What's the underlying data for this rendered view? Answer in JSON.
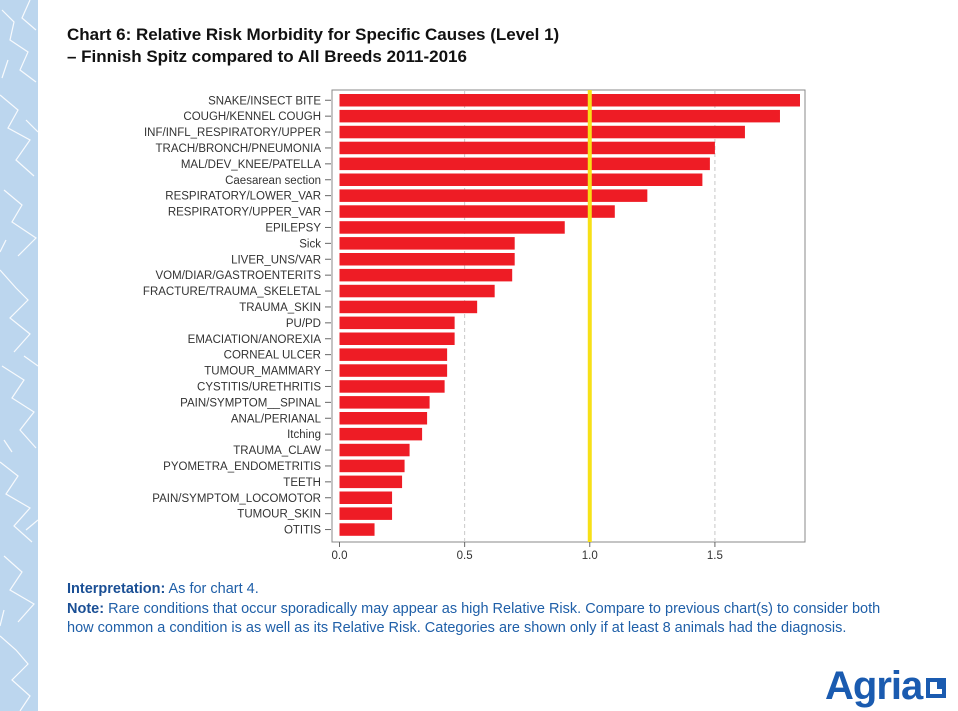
{
  "title_line1": "Chart 6: Relative Risk Morbidity for Specific Causes (Level 1)",
  "title_line2": "–  Finnish Spitz compared to All Breeds 2011-2016",
  "interpretation_label": "Interpretation:",
  "interpretation_text": "As for chart 4.",
  "note_label": "Note:",
  "note_text": "Rare conditions that occur sporadically may appear as high Relative Risk. Compare to previous chart(s) to consider both how common a condition is as well as its Relative Risk. Categories are shown only if at least 8 animals had the diagnosis.",
  "logo_text": "Agria",
  "colors": {
    "bar": "#ee1c25",
    "reference_line": "#f7e017",
    "notes_text": "#1f5fa8",
    "logo": "#1a5bb0",
    "side_band": "#bcd6ee"
  },
  "chart_data": {
    "type": "bar",
    "orientation": "horizontal",
    "categories": [
      "SNAKE/INSECT BITE",
      "COUGH/KENNEL COUGH",
      "INF/INFL_RESPIRATORY/UPPER",
      "TRACH/BRONCH/PNEUMONIA",
      "MAL/DEV_KNEE/PATELLA",
      "Caesarean section",
      "RESPIRATORY/LOWER_VAR",
      "RESPIRATORY/UPPER_VAR",
      "EPILEPSY",
      "Sick",
      "LIVER_UNS/VAR",
      "VOM/DIAR/GASTROENTERITS",
      "FRACTURE/TRAUMA_SKELETAL",
      "TRAUMA_SKIN",
      "PU/PD",
      "EMACIATION/ANOREXIA",
      "CORNEAL ULCER",
      "TUMOUR_MAMMARY",
      "CYSTITIS/URETHRITIS",
      "PAIN/SYMPTOM__SPINAL",
      "ANAL/PERIANAL",
      "Itching",
      "TRAUMA_CLAW",
      "PYOMETRA_ENDOMETRITIS",
      "TEETH",
      "PAIN/SYMPTOM_LOCOMOTOR",
      "TUMOUR_SKIN",
      "OTITIS"
    ],
    "values": [
      1.84,
      1.76,
      1.62,
      1.5,
      1.48,
      1.45,
      1.23,
      1.1,
      0.9,
      0.7,
      0.7,
      0.69,
      0.62,
      0.55,
      0.46,
      0.46,
      0.43,
      0.43,
      0.42,
      0.36,
      0.35,
      0.33,
      0.28,
      0.26,
      0.25,
      0.21,
      0.21,
      0.14
    ],
    "xlim": [
      -0.03,
      1.86
    ],
    "xticks": [
      0.0,
      0.5,
      1.0,
      1.5
    ],
    "xtick_labels": [
      "0.0",
      "0.5",
      "1.0",
      "1.5"
    ],
    "reference_line": 1.0,
    "grid": "dashed vertical gridlines at 0.5 and 1.5"
  }
}
